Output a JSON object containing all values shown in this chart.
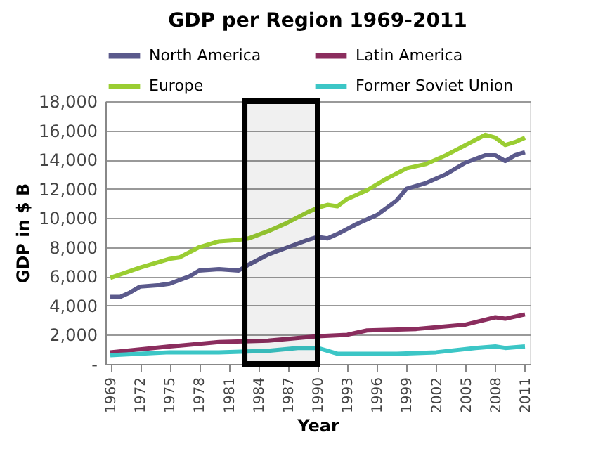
{
  "chart_data": {
    "type": "line",
    "title": "GDP per Region 1969-2011",
    "xlabel": "Year",
    "ylabel": "GDP in $ B",
    "xlim": [
      1968.5,
      2011.5
    ],
    "xticks": [
      1969,
      1972,
      1975,
      1978,
      1981,
      1984,
      1987,
      1990,
      1993,
      1996,
      1999,
      2002,
      2005,
      2008,
      2011
    ],
    "ylim": [
      0,
      18000
    ],
    "yticks": [
      {
        "value": 0,
        "label": "-"
      },
      {
        "value": 2000,
        "label": "2,000"
      },
      {
        "value": 4000,
        "label": "4,000"
      },
      {
        "value": 6000,
        "label": "6,000"
      },
      {
        "value": 8000,
        "label": "8,000"
      },
      {
        "value": 10000,
        "label": "10,000"
      },
      {
        "value": 12000,
        "label": "12,000"
      },
      {
        "value": 14000,
        "label": "14,000"
      },
      {
        "value": 16000,
        "label": "16,000"
      },
      {
        "value": 18000,
        "label": "18,000"
      }
    ],
    "grid": "y",
    "legend": "top",
    "marker": "none",
    "line_style": "solid",
    "bands": [
      {
        "axis": "x",
        "from": 1982.6,
        "to": 1990,
        "color": "#000000"
      }
    ],
    "series": [
      {
        "name": "North America",
        "color": "#5b5a8c",
        "x": [
          1969,
          1970,
          1971,
          1972,
          1974,
          1975,
          1977,
          1978,
          1980,
          1982,
          1983,
          1985,
          1987,
          1989,
          1990,
          1991,
          1992,
          1994,
          1996,
          1998,
          1999,
          2001,
          2003,
          2005,
          2007,
          2008,
          2009,
          2010,
          2011
        ],
        "values": [
          4600,
          4600,
          4900,
          5300,
          5400,
          5500,
          6000,
          6400,
          6500,
          6400,
          6800,
          7500,
          8000,
          8500,
          8700,
          8600,
          8900,
          9600,
          10200,
          11200,
          12000,
          12400,
          13000,
          13800,
          14300,
          14300,
          13900,
          14300,
          14500
        ]
      },
      {
        "name": "Latin America",
        "color": "#8b2d5e",
        "x": [
          1969,
          1975,
          1980,
          1985,
          1990,
          1993,
          1995,
          2000,
          2005,
          2008,
          2009,
          2011
        ],
        "values": [
          800,
          1200,
          1500,
          1600,
          1900,
          2000,
          2300,
          2400,
          2700,
          3200,
          3100,
          3400
        ]
      },
      {
        "name": "Europe",
        "color": "#9acd32",
        "x": [
          1969,
          1972,
          1975,
          1976,
          1978,
          1980,
          1982,
          1983,
          1985,
          1987,
          1989,
          1990,
          1991,
          1992,
          1993,
          1995,
          1997,
          1999,
          2001,
          2003,
          2005,
          2007,
          2008,
          2009,
          2010,
          2011
        ],
        "values": [
          5900,
          6600,
          7200,
          7300,
          8000,
          8400,
          8500,
          8600,
          9100,
          9700,
          10400,
          10700,
          10900,
          10800,
          11300,
          11900,
          12700,
          13400,
          13700,
          14300,
          15000,
          15700,
          15500,
          15000,
          15200,
          15500
        ]
      },
      {
        "name": "Former Soviet Union",
        "color": "#3cc6c6",
        "x": [
          1969,
          1975,
          1980,
          1985,
          1988,
          1990,
          1992,
          1995,
          1998,
          2002,
          2006,
          2008,
          2009,
          2011
        ],
        "values": [
          600,
          800,
          800,
          900,
          1100,
          1100,
          700,
          700,
          700,
          800,
          1100,
          1200,
          1100,
          1200
        ]
      }
    ]
  }
}
